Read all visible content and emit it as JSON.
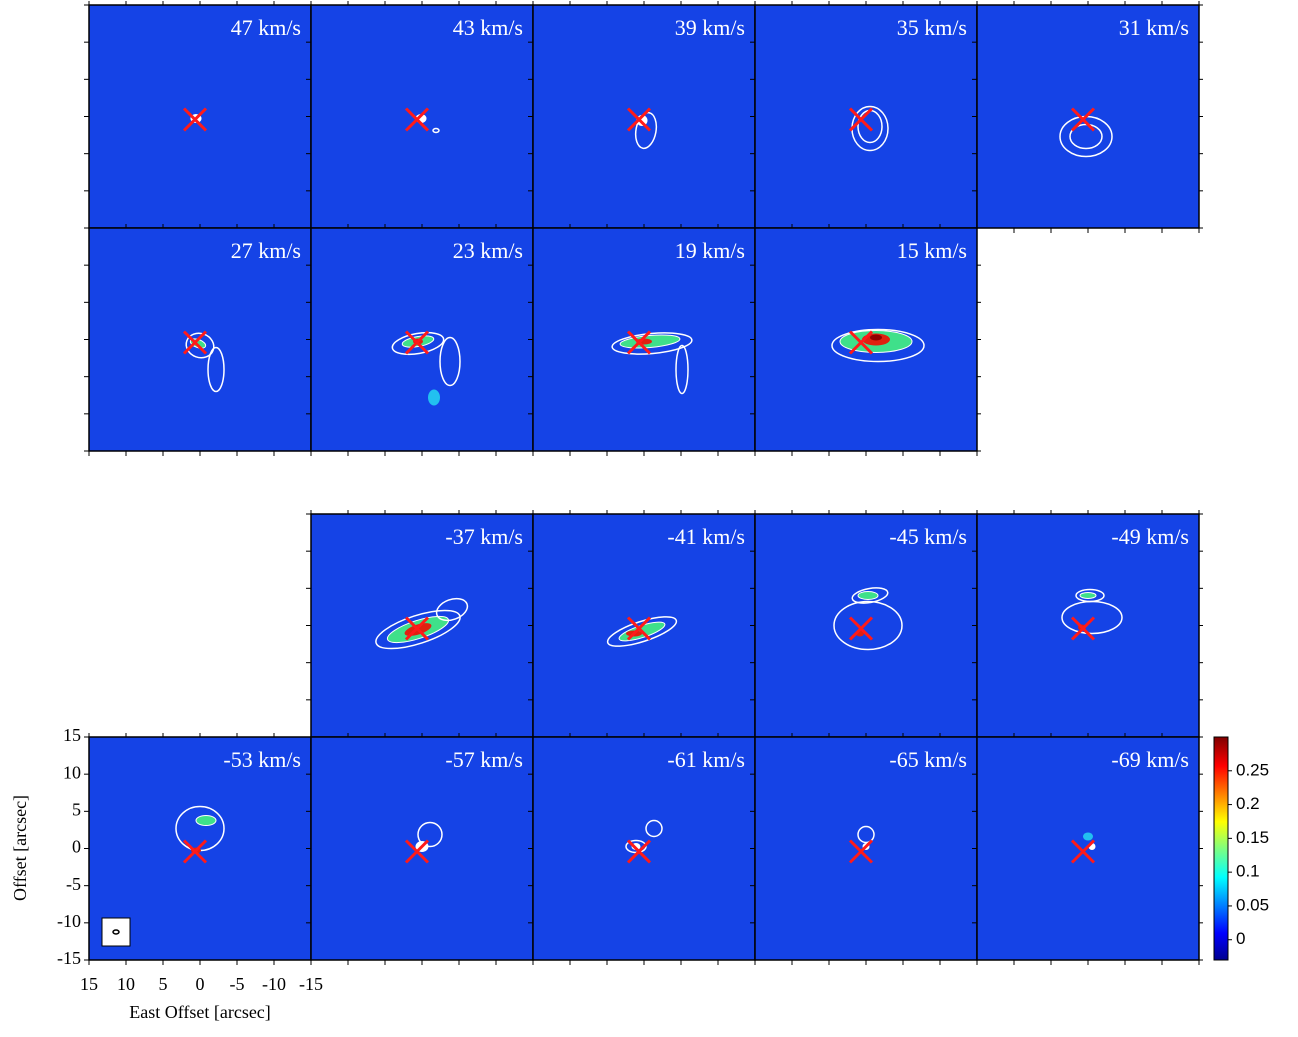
{
  "chart_data": {
    "type": "channel-map",
    "panels": [
      "47 km/s",
      "43 km/s",
      "39 km/s",
      "35 km/s",
      "31 km/s",
      "27 km/s",
      "23 km/s",
      "19 km/s",
      "15 km/s",
      "-37 km/s",
      "-41 km/s",
      "-45 km/s",
      "-49 km/s",
      "-53 km/s",
      "-57 km/s",
      "-61 km/s",
      "-65 km/s",
      "-69 km/s"
    ],
    "xlabel": "East Offset [arcsec]",
    "ylabel": "Offset [arcsec]",
    "xlim": [
      15,
      -15
    ],
    "ylim": [
      -15,
      15
    ],
    "xticks": [
      15,
      10,
      5,
      0,
      -5,
      -10,
      -15
    ],
    "yticks": [
      15,
      10,
      5,
      0,
      -5,
      -10,
      -15
    ],
    "colorbar": {
      "clim": [
        -0.03,
        0.3
      ],
      "ticks": [
        0,
        0.05,
        0.1,
        0.15,
        0.2,
        0.25
      ]
    }
  }
}
